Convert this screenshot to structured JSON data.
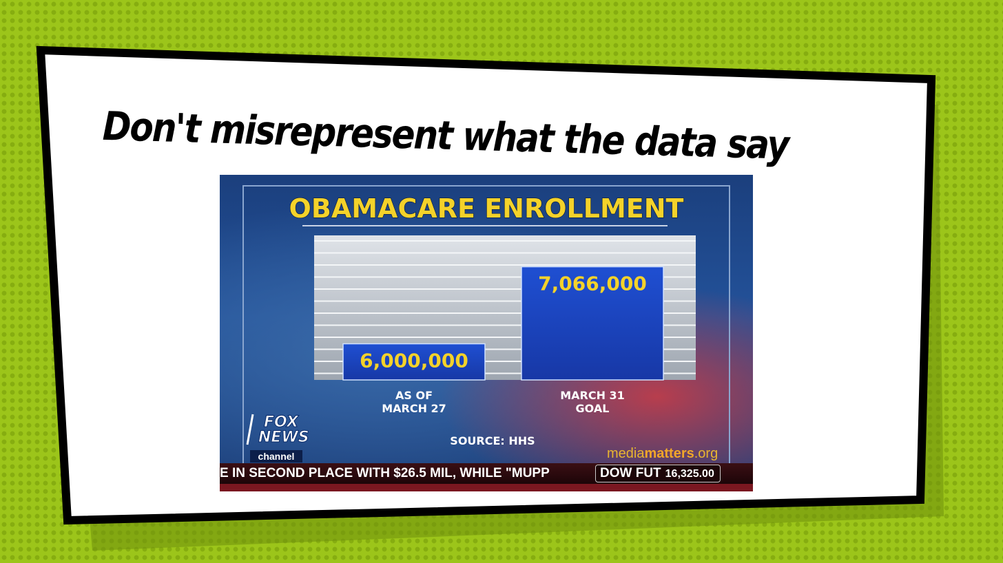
{
  "slide": {
    "title": "Don't misrepresent what the data say"
  },
  "colors": {
    "background": "#9cc51a",
    "card": "#ffffff",
    "card_border": "#000000",
    "bar_fill": "#1c44c4",
    "label_gold": "#f4d22a",
    "ticker_bg": "#2a0a0e"
  },
  "chart_data": {
    "type": "bar",
    "title": "OBAMACARE ENROLLMENT",
    "categories": [
      [
        "AS OF",
        "MARCH 27"
      ],
      [
        "MARCH 31",
        "GOAL"
      ]
    ],
    "values": [
      6000000,
      7066000
    ],
    "data_labels": [
      "6,000,000",
      "7,066,000"
    ],
    "ylim": [
      5500000,
      7500000
    ],
    "source": "SOURCE: HHS",
    "grid": true
  },
  "broadcast": {
    "logo_line1": "FOX",
    "logo_line2": "NEWS",
    "logo_line3": "channel",
    "ticker_text": "E IN SECOND PLACE WITH $26.5 MIL, WHILE \"MUPP",
    "dow_label": "DOW FUT",
    "dow_value": "16,325.00",
    "watermark_regular": "media",
    "watermark_bold": "matters",
    "watermark_tld": ".org"
  }
}
